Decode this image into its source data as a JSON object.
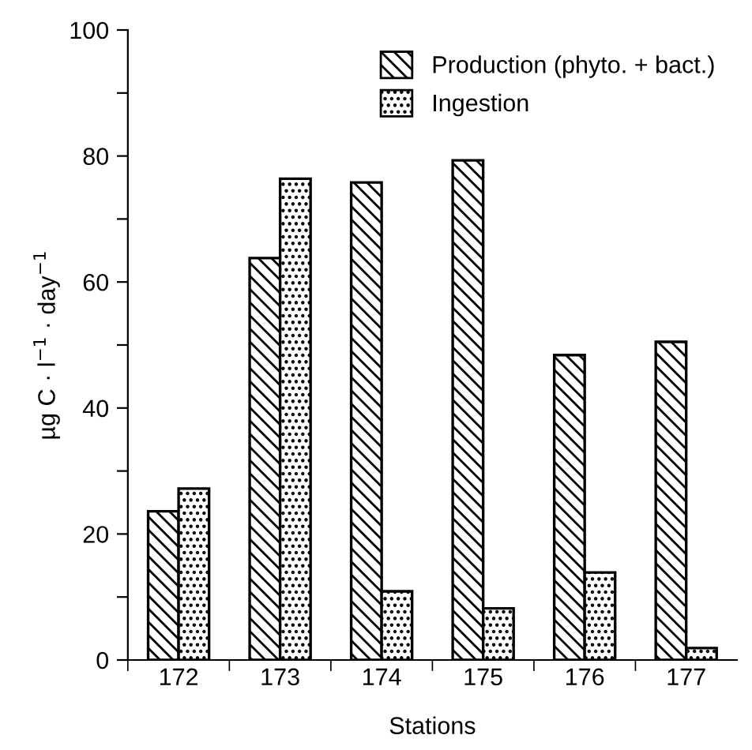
{
  "chart_data": {
    "type": "bar",
    "xlabel": "Stations",
    "ylabel": "µg C · l$^{−1}$ · day$^{−1}$",
    "categories": [
      "172",
      "173",
      "174",
      "175",
      "176",
      "177"
    ],
    "series": [
      {
        "name": "Production (phyto. + bact.)",
        "color": "#000000",
        "values": [
          23.6,
          63.8,
          75.8,
          79.3,
          48.4,
          50.5
        ]
      },
      {
        "name": "Ingestion",
        "color": "#000000",
        "values": [
          27.2,
          76.4,
          10.9,
          8.2,
          13.9,
          1.9
        ]
      }
    ],
    "ylim": [
      0,
      100
    ],
    "yticks": [
      0,
      {
        "value": 10,
        "label": null
      },
      20,
      {
        "value": 30,
        "label": null
      },
      40,
      {
        "value": 50,
        "label": null
      },
      60,
      {
        "value": 70,
        "label": null
      },
      80,
      {
        "value": 90,
        "label": null
      },
      100
    ],
    "grid": false,
    "legend": "top right"
  }
}
